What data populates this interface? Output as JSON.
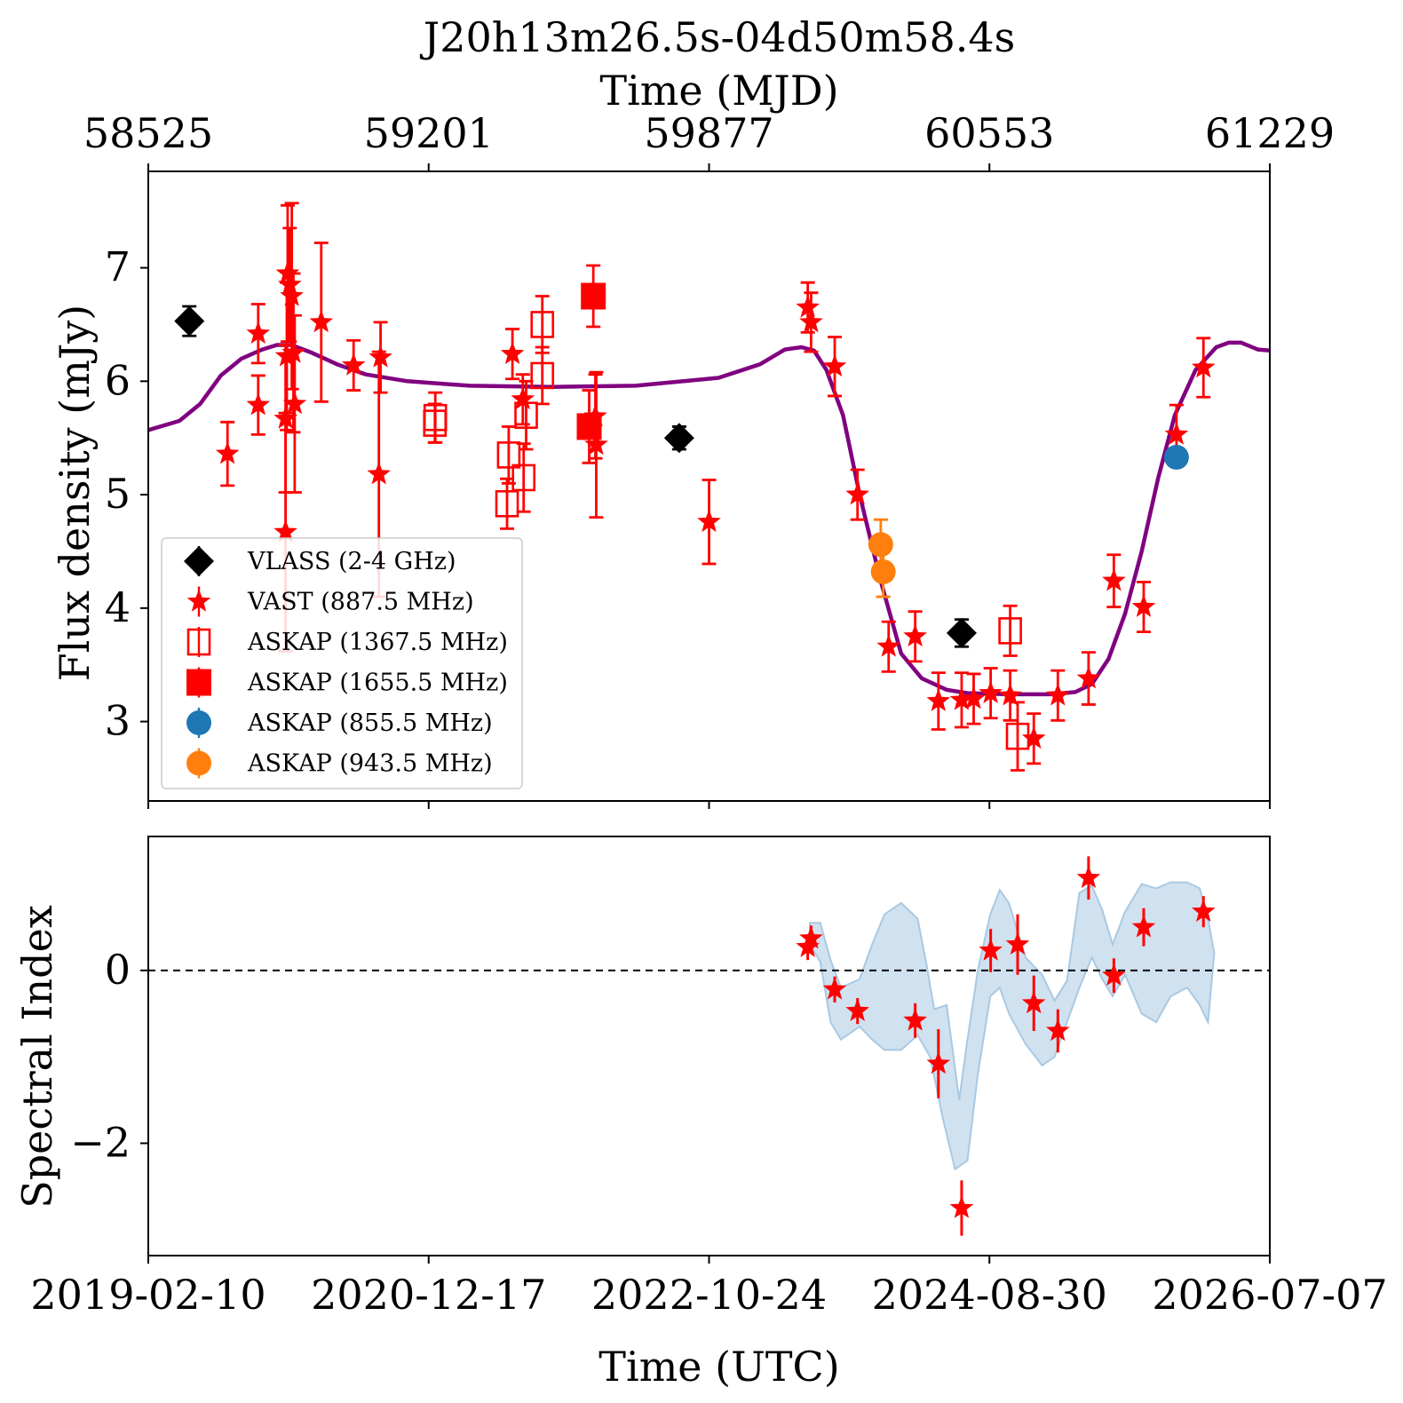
{
  "colors": {
    "vlass": "#000000",
    "vast": "#ff0000",
    "askap1367": "#ff0000",
    "askap1655": "#ff0000",
    "askap855": "#1f77b4",
    "askap943": "#ff7f0e",
    "model": "#800080",
    "band": "#a9c9e3"
  },
  "chart_data": [
    {
      "type": "scatter",
      "title": "J20h13m26.5s-04d50m58.4s",
      "top_axis": {
        "label": "Time (MJD)",
        "range": [
          58525,
          61229
        ],
        "ticks": [
          "58525",
          "59201",
          "59877",
          "60553",
          "61229"
        ]
      },
      "x_axis": {
        "label": "",
        "range": [
          58525,
          61229
        ]
      },
      "y_axis": {
        "label": "Flux density (mJy)",
        "range": [
          2.3,
          7.85
        ],
        "ticks": [
          3,
          4,
          5,
          6,
          7
        ]
      },
      "legend": {
        "position": "lower-left",
        "entries": [
          {
            "key": "vlass",
            "label": "VLASS (2-4 GHz)",
            "marker": "diamond"
          },
          {
            "key": "vast",
            "label": "VAST (887.5 MHz)",
            "marker": "star"
          },
          {
            "key": "askap1367",
            "label": "ASKAP (1367.5 MHz)",
            "marker": "open-square"
          },
          {
            "key": "askap1655",
            "label": "ASKAP (1655.5 MHz)",
            "marker": "filled-square"
          },
          {
            "key": "askap855",
            "label": "ASKAP (855.5 MHz)",
            "marker": "circle"
          },
          {
            "key": "askap943",
            "label": "ASKAP (943.5 MHz)",
            "marker": "circle"
          }
        ]
      },
      "series": [
        {
          "key": "vlass",
          "points": [
            [
              58624,
              6.53,
              0.13
            ],
            [
              59805,
              5.5,
              0.1
            ],
            [
              60486,
              3.78,
              0.12
            ]
          ]
        },
        {
          "key": "vast",
          "points": [
            [
              58716,
              5.36,
              0.28
            ],
            [
              58790,
              6.42,
              0.26
            ],
            [
              58790,
              5.79,
              0.26
            ],
            [
              58856,
              4.67,
              1.05
            ],
            [
              58856,
              5.67,
              0.65
            ],
            [
              58859,
              6.22,
              0.65
            ],
            [
              58861,
              6.95,
              0.6
            ],
            [
              58866,
              6.85,
              0.5
            ],
            [
              58871,
              6.75,
              0.82
            ],
            [
              58875,
              6.25,
              0.7
            ],
            [
              58878,
              5.8,
              0.78
            ],
            [
              58942,
              6.52,
              0.7
            ],
            [
              59020,
              6.14,
              0.22
            ],
            [
              59085,
              6.21,
              0.31
            ],
            [
              59081,
              5.18,
              1.08
            ],
            [
              59403,
              6.24,
              0.22
            ],
            [
              59428,
              5.84,
              0.22
            ],
            [
              59603,
              5.69,
              0.37
            ],
            [
              59605,
              5.44,
              0.64
            ],
            [
              59877,
              4.76,
              0.37
            ],
            [
              60115,
              6.65,
              0.22
            ],
            [
              60123,
              6.52,
              0.26
            ],
            [
              60180,
              6.13,
              0.26
            ],
            [
              60235,
              5.0,
              0.22
            ],
            [
              60310,
              3.66,
              0.22
            ],
            [
              60374,
              3.75,
              0.22
            ],
            [
              60430,
              3.18,
              0.25
            ],
            [
              60486,
              3.19,
              0.24
            ],
            [
              60515,
              3.2,
              0.22
            ],
            [
              60556,
              3.25,
              0.22
            ],
            [
              60603,
              3.23,
              0.22
            ],
            [
              60660,
              2.85,
              0.22
            ],
            [
              60718,
              3.23,
              0.22
            ],
            [
              60792,
              3.38,
              0.23
            ],
            [
              60853,
              4.24,
              0.23
            ],
            [
              60925,
              4.01,
              0.22
            ],
            [
              61004,
              5.53,
              0.26
            ],
            [
              61069,
              6.12,
              0.26
            ]
          ]
        },
        {
          "key": "askap1367",
          "points": [
            [
              59216,
              5.63,
              0.17
            ],
            [
              59217,
              5.68,
              0.22
            ],
            [
              59390,
              4.92,
              0.22
            ],
            [
              59394,
              5.35,
              0.25
            ],
            [
              59430,
              5.15,
              0.3
            ],
            [
              59436,
              5.7,
              0.3
            ],
            [
              59475,
              6.5,
              0.25
            ],
            [
              59475,
              6.05,
              0.25
            ],
            [
              60603,
              3.8,
              0.22
            ],
            [
              60621,
              2.87,
              0.3
            ]
          ]
        },
        {
          "key": "askap1655",
          "points": [
            [
              59588,
              5.6,
              0.32
            ],
            [
              59598,
              6.75,
              0.27
            ]
          ]
        },
        {
          "key": "askap855",
          "points": [
            [
              61004,
              5.33,
              0.05
            ]
          ]
        },
        {
          "key": "askap943",
          "points": [
            [
              60291,
              4.56,
              0.22
            ],
            [
              60297,
              4.32,
              0.22
            ]
          ]
        }
      ],
      "model_curve": [
        [
          58525,
          5.57
        ],
        [
          58600,
          5.65
        ],
        [
          58650,
          5.8
        ],
        [
          58700,
          6.05
        ],
        [
          58750,
          6.2
        ],
        [
          58800,
          6.28
        ],
        [
          58835,
          6.32
        ],
        [
          58870,
          6.32
        ],
        [
          58920,
          6.25
        ],
        [
          58980,
          6.15
        ],
        [
          59050,
          6.06
        ],
        [
          59150,
          6.0
        ],
        [
          59300,
          5.96
        ],
        [
          59500,
          5.95
        ],
        [
          59700,
          5.96
        ],
        [
          59900,
          6.03
        ],
        [
          60000,
          6.15
        ],
        [
          60060,
          6.28
        ],
        [
          60100,
          6.3
        ],
        [
          60130,
          6.27
        ],
        [
          60160,
          6.1
        ],
        [
          60200,
          5.7
        ],
        [
          60240,
          5.0
        ],
        [
          60290,
          4.25
        ],
        [
          60340,
          3.6
        ],
        [
          60390,
          3.38
        ],
        [
          60450,
          3.28
        ],
        [
          60500,
          3.25
        ],
        [
          60600,
          3.24
        ],
        [
          60700,
          3.24
        ],
        [
          60760,
          3.26
        ],
        [
          60800,
          3.33
        ],
        [
          60840,
          3.55
        ],
        [
          60880,
          3.95
        ],
        [
          60920,
          4.5
        ],
        [
          60960,
          5.15
        ],
        [
          61000,
          5.7
        ],
        [
          61050,
          6.1
        ],
        [
          61100,
          6.3
        ],
        [
          61130,
          6.34
        ],
        [
          61160,
          6.34
        ],
        [
          61200,
          6.28
        ],
        [
          61229,
          6.27
        ]
      ]
    },
    {
      "type": "scatter",
      "x_axis": {
        "label": "Time (UTC)",
        "range": [
          58525,
          61229
        ],
        "ticks": [
          "2019-02-10",
          "2020-12-17",
          "2022-10-24",
          "2024-08-30",
          "2026-07-07"
        ]
      },
      "y_axis": {
        "label": "Spectral Index",
        "range": [
          -3.3,
          1.55
        ],
        "ticks": [
          -2,
          0
        ]
      },
      "reference_line": 0,
      "series": [
        {
          "key": "vast",
          "points": [
            [
              60115,
              0.27,
              0.15
            ],
            [
              60123,
              0.37,
              0.15
            ],
            [
              60180,
              -0.22,
              0.15
            ],
            [
              60235,
              -0.47,
              0.15
            ],
            [
              60374,
              -0.58,
              0.2
            ],
            [
              60430,
              -1.08,
              0.4
            ],
            [
              60486,
              -2.75,
              0.32
            ],
            [
              60556,
              0.23,
              0.25
            ],
            [
              60621,
              0.3,
              0.35
            ],
            [
              60660,
              -0.38,
              0.32
            ],
            [
              60718,
              -0.7,
              0.25
            ],
            [
              60792,
              1.07,
              0.25
            ],
            [
              60853,
              -0.06,
              0.2
            ],
            [
              60925,
              0.5,
              0.22
            ],
            [
              61069,
              0.68,
              0.18
            ]
          ]
        }
      ],
      "band_upper": [
        [
          60120,
          0.55
        ],
        [
          60145,
          0.55
        ],
        [
          60170,
          0.12
        ],
        [
          60195,
          -0.2
        ],
        [
          60240,
          -0.1
        ],
        [
          60270,
          0.3
        ],
        [
          60300,
          0.65
        ],
        [
          60340,
          0.78
        ],
        [
          60380,
          0.6
        ],
        [
          60400,
          0.1
        ],
        [
          60420,
          -0.45
        ],
        [
          60450,
          -0.4
        ],
        [
          60480,
          -1.5
        ],
        [
          60500,
          -0.8
        ],
        [
          60525,
          0.0
        ],
        [
          60555,
          0.65
        ],
        [
          60578,
          0.93
        ],
        [
          60600,
          0.78
        ],
        [
          60640,
          0.15
        ],
        [
          60680,
          -0.05
        ],
        [
          60710,
          -0.35
        ],
        [
          60740,
          -0.12
        ],
        [
          60770,
          0.9
        ],
        [
          60800,
          0.98
        ],
        [
          60825,
          0.7
        ],
        [
          60850,
          0.3
        ],
        [
          60880,
          0.68
        ],
        [
          60920,
          1.0
        ],
        [
          60955,
          0.95
        ],
        [
          60990,
          1.02
        ],
        [
          61030,
          1.02
        ],
        [
          61060,
          0.95
        ],
        [
          61080,
          0.6
        ],
        [
          61095,
          0.2
        ]
      ],
      "band_lower": [
        [
          60120,
          0.3
        ],
        [
          60145,
          0.1
        ],
        [
          60170,
          -0.6
        ],
        [
          60195,
          -0.8
        ],
        [
          60240,
          -0.65
        ],
        [
          60270,
          -0.8
        ],
        [
          60300,
          -0.92
        ],
        [
          60340,
          -0.92
        ],
        [
          60380,
          -0.75
        ],
        [
          60410,
          -1.0
        ],
        [
          60440,
          -1.7
        ],
        [
          60470,
          -2.3
        ],
        [
          60500,
          -2.2
        ],
        [
          60525,
          -1.2
        ],
        [
          60555,
          -0.3
        ],
        [
          60578,
          -0.2
        ],
        [
          60600,
          -0.5
        ],
        [
          60640,
          -0.85
        ],
        [
          60680,
          -1.1
        ],
        [
          60710,
          -1.0
        ],
        [
          60740,
          -0.6
        ],
        [
          60770,
          -0.2
        ],
        [
          60800,
          0.15
        ],
        [
          60825,
          -0.1
        ],
        [
          60850,
          -0.3
        ],
        [
          60880,
          -0.05
        ],
        [
          60920,
          -0.5
        ],
        [
          60955,
          -0.6
        ],
        [
          60990,
          -0.3
        ],
        [
          61030,
          -0.2
        ],
        [
          61060,
          -0.4
        ],
        [
          61080,
          -0.6
        ],
        [
          61095,
          0.2
        ]
      ]
    }
  ]
}
